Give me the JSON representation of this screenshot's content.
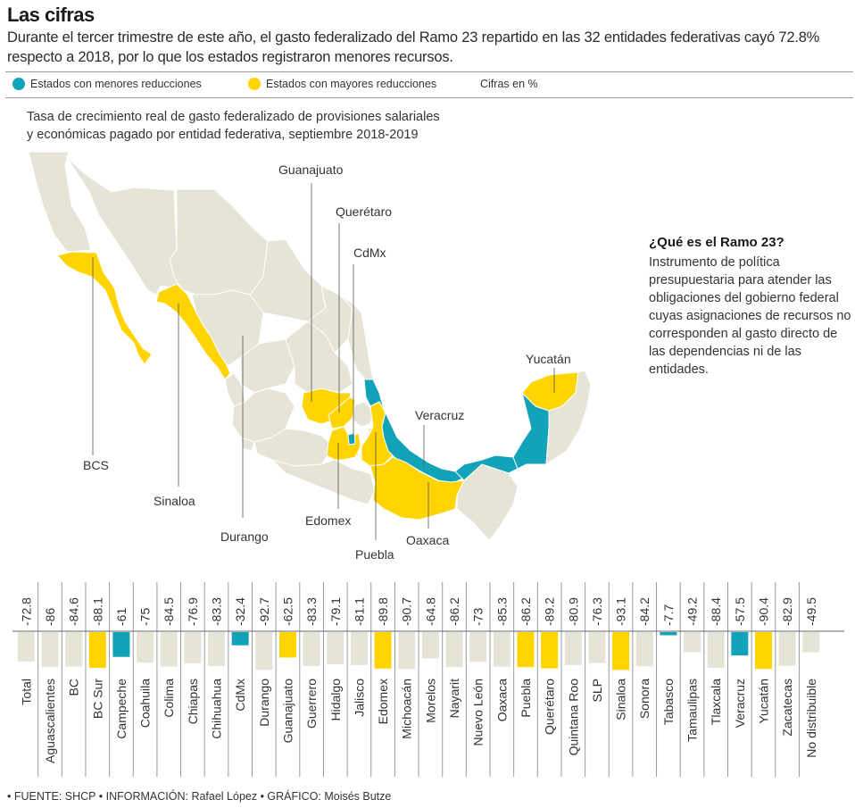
{
  "header": {
    "title": "Las cifras",
    "subtitle": "Durante el tercer trimestre de este año, el gasto federalizado del Ramo 23 repartido en las 32 entidades federativas cayó 72.8% respecto a 2018, por lo que los estados registraron menores recursos."
  },
  "legend": {
    "items": [
      {
        "label": "Estados con menores reducciones",
        "color": "#12a3b8"
      },
      {
        "label": "Estados con mayores reducciones",
        "color": "#ffd400"
      }
    ],
    "units_note": "Cifras en %"
  },
  "map": {
    "title_line1": "Tasa de crecimiento real de gasto federalizado de provisiones salariales",
    "title_line2": "y económicas pagado por entidad federativa, septiembre 2018-2019",
    "colors": {
      "neutral": "#e6e4d6",
      "low_reduction": "#12a3b8",
      "high_reduction": "#ffd400",
      "border": "#ffffff"
    },
    "labels": [
      "Guanajuato",
      "Querétaro",
      "CdMx",
      "Yucatán",
      "Veracruz",
      "BCS",
      "Sinaloa",
      "Durango",
      "Edomex",
      "Puebla",
      "Oaxaca"
    ]
  },
  "sidebar": {
    "title": "¿Qué es el Ramo 23?",
    "text": "Instrumento de política presupuestaria para atender las obligaciones del gobierno federal cuyas asignaciones de recursos no corresponden al gasto directo de las dependencias ni de las entidades."
  },
  "chart_data": {
    "type": "bar",
    "title": "Tasa de crecimiento real de gasto federalizado de provisiones salariales y económicas pagado por entidad federativa, septiembre 2018-2019",
    "ylabel": "Cifras en %",
    "xlabel": "",
    "ylim": [
      -100,
      0
    ],
    "orientation": "vertical-downward",
    "grid": false,
    "legend": "top-left",
    "categories": [
      "Total",
      "Aguascalientes",
      "BC",
      "BC Sur",
      "Campeche",
      "Coahuila",
      "Colima",
      "Chiapas",
      "Chihuahua",
      "CdMx",
      "Durango",
      "Guanajuato",
      "Guerrero",
      "Hidalgo",
      "Jalisco",
      "Edomex",
      "Michoacán",
      "Morelos",
      "Nayarit",
      "Nuevo León",
      "Oaxaca",
      "Puebla",
      "Querétaro",
      "Quintana Roo",
      "SLP",
      "Sinaloa",
      "Sonora",
      "Tabasco",
      "Tamaulipas",
      "Tlaxcala",
      "Veracruz",
      "Yucatán",
      "Zacatecas",
      "No distribuible"
    ],
    "value_labels": [
      "-72.8",
      "-86",
      "-84.6",
      "-88.1",
      "-61",
      "-75",
      "-84.5",
      "-76.9",
      "-83.3",
      "-32.4",
      "-92.7",
      "-62.5",
      "-83.3",
      "-79.1",
      "-81.1",
      "-89.8",
      "-90.7",
      "-64.8",
      "-86.2",
      "-73",
      "-85.3",
      "-86.2",
      "-89.2",
      "-80.9",
      "-76.3",
      "-93.1",
      "-84.2",
      "-7.7",
      "-49.2",
      "-88.4",
      "-57.5",
      "-90.4",
      "-82.9",
      "-49.5"
    ],
    "values": [
      -72.8,
      -86,
      -84.6,
      -88.1,
      -61,
      -75,
      -84.5,
      -76.9,
      -83.3,
      -32.4,
      -92.7,
      -62.5,
      -83.3,
      -79.1,
      -81.1,
      -89.8,
      -90.7,
      -64.8,
      -86.2,
      -73,
      -85.3,
      -86.2,
      -89.2,
      -80.9,
      -76.3,
      -93.1,
      -84.2,
      -7.7,
      -49.2,
      -88.4,
      -57.5,
      -90.4,
      -82.9,
      -49.5
    ],
    "groups": [
      "neutral",
      "neutral",
      "neutral",
      "high",
      "low",
      "neutral",
      "neutral",
      "neutral",
      "neutral",
      "low",
      "neutral",
      "high",
      "neutral",
      "neutral",
      "neutral",
      "high",
      "neutral",
      "neutral",
      "neutral",
      "neutral",
      "neutral",
      "high",
      "high",
      "neutral",
      "neutral",
      "high",
      "neutral",
      "low",
      "neutral",
      "neutral",
      "low",
      "high",
      "neutral",
      "neutral"
    ],
    "group_colors": {
      "neutral": "#e6e4d6",
      "low": "#12a3b8",
      "high": "#ffd400"
    }
  },
  "footer": {
    "credits": "• FUENTE: SHCP • INFORMACIÓN: Rafael López • GRÁFICO: Moisés Butze"
  }
}
